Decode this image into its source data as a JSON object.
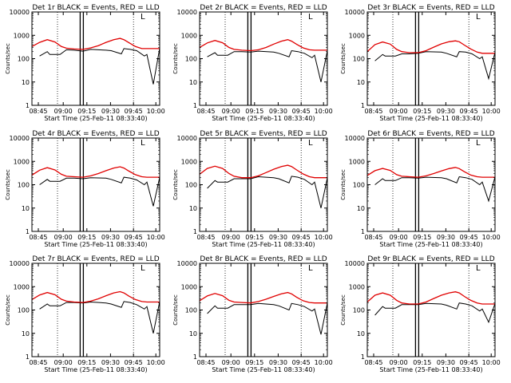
{
  "chart_data": [
    {
      "type": "line",
      "title": "Det 1r BLACK = Events, RED = LLD",
      "xlabel": "Start Time (25-Feb-11 08:33:40)",
      "ylabel": "Counts/sec",
      "yscale": "log",
      "ylim": [
        1,
        10000
      ],
      "x_ticks": [
        "08:45",
        "09:00",
        "09:15",
        "09:30",
        "09:45",
        "10:00"
      ],
      "y_ticks": [
        "1",
        "10",
        "100",
        "1000",
        "10000"
      ],
      "corner_mark": "L",
      "series": [
        {
          "name": "BLACK = Events",
          "color": "#000000",
          "x": [
            6,
            12,
            14,
            22,
            27,
            33,
            40,
            46,
            58,
            62,
            70,
            72,
            77,
            82,
            88,
            90,
            95,
            100
          ],
          "y": [
            130,
            200,
            150,
            150,
            240,
            230,
            210,
            250,
            230,
            220,
            160,
            270,
            250,
            220,
            130,
            150,
            8,
            280
          ]
        },
        {
          "name": "RED = LLD",
          "color": "#e00000",
          "x": [
            0,
            6,
            12,
            18,
            23,
            27,
            33,
            40,
            46,
            52,
            58,
            64,
            69,
            72,
            76,
            81,
            86,
            90,
            94,
            100
          ],
          "y": [
            330,
            500,
            650,
            520,
            330,
            280,
            260,
            250,
            290,
            360,
            500,
            650,
            740,
            650,
            480,
            330,
            270,
            270,
            270,
            270
          ]
        }
      ]
    },
    {
      "type": "line",
      "title": "Det 2r BLACK = Events, RED = LLD",
      "xlabel": "Start Time (25-Feb-11 08:33:40)",
      "ylabel": "Counts/sec",
      "yscale": "log",
      "ylim": [
        1,
        10000
      ],
      "x_ticks": [
        "08:45",
        "09:00",
        "09:15",
        "09:30",
        "09:45",
        "10:00"
      ],
      "y_ticks": [
        "1",
        "10",
        "100",
        "1000",
        "10000"
      ],
      "corner_mark": "L",
      "series": [
        {
          "name": "BLACK = Events",
          "color": "#000000",
          "x": [
            6,
            12,
            14,
            22,
            27,
            33,
            40,
            46,
            58,
            62,
            70,
            72,
            77,
            82,
            88,
            90,
            95,
            100
          ],
          "y": [
            120,
            180,
            140,
            140,
            200,
            200,
            190,
            210,
            190,
            170,
            120,
            220,
            200,
            170,
            110,
            140,
            10,
            220
          ]
        },
        {
          "name": "RED = LLD",
          "color": "#e00000",
          "x": [
            0,
            6,
            12,
            18,
            23,
            27,
            33,
            40,
            46,
            52,
            58,
            64,
            69,
            72,
            76,
            81,
            86,
            90,
            94,
            100
          ],
          "y": [
            300,
            470,
            600,
            480,
            300,
            250,
            230,
            220,
            240,
            300,
            420,
            560,
            650,
            560,
            410,
            290,
            240,
            230,
            230,
            230
          ]
        }
      ]
    },
    {
      "type": "line",
      "title": "Det 3r BLACK = Events, RED = LLD",
      "xlabel": "Start Time (25-Feb-11 08:33:40)",
      "ylabel": "Counts/sec",
      "yscale": "log",
      "ylim": [
        1,
        10000
      ],
      "x_ticks": [
        "08:45",
        "09:00",
        "09:15",
        "09:30",
        "09:45",
        "10:00"
      ],
      "y_ticks": [
        "1",
        "10",
        "100",
        "1000",
        "10000"
      ],
      "corner_mark": "L",
      "series": [
        {
          "name": "BLACK = Events",
          "color": "#000000",
          "x": [
            6,
            12,
            14,
            22,
            27,
            33,
            40,
            46,
            58,
            62,
            70,
            72,
            77,
            82,
            88,
            90,
            95,
            100
          ],
          "y": [
            80,
            150,
            130,
            130,
            160,
            160,
            170,
            200,
            190,
            170,
            120,
            200,
            190,
            160,
            100,
            120,
            14,
            190
          ]
        },
        {
          "name": "RED = LLD",
          "color": "#e00000",
          "x": [
            0,
            6,
            12,
            18,
            23,
            27,
            33,
            40,
            46,
            52,
            58,
            64,
            69,
            72,
            76,
            81,
            86,
            90,
            94,
            100
          ],
          "y": [
            200,
            400,
            520,
            420,
            250,
            200,
            180,
            180,
            220,
            310,
            430,
            530,
            580,
            530,
            380,
            260,
            190,
            170,
            170,
            170
          ]
        }
      ]
    },
    {
      "type": "line",
      "title": "Det 4r BLACK = Events, RED = LLD",
      "xlabel": "Start Time (25-Feb-11 08:33:40)",
      "ylabel": "Counts/sec",
      "yscale": "log",
      "ylim": [
        1,
        10000
      ],
      "x_ticks": [
        "08:45",
        "09:00",
        "09:15",
        "09:30",
        "09:45",
        "10:00"
      ],
      "y_ticks": [
        "1",
        "10",
        "100",
        "1000",
        "10000"
      ],
      "corner_mark": "L",
      "series": [
        {
          "name": "BLACK = Events",
          "color": "#000000",
          "x": [
            6,
            12,
            14,
            22,
            27,
            33,
            40,
            46,
            58,
            62,
            70,
            72,
            77,
            82,
            88,
            90,
            95,
            100
          ],
          "y": [
            100,
            170,
            140,
            140,
            190,
            190,
            180,
            200,
            190,
            170,
            120,
            210,
            190,
            160,
            100,
            130,
            12,
            210
          ]
        },
        {
          "name": "RED = LLD",
          "color": "#e00000",
          "x": [
            0,
            6,
            12,
            18,
            23,
            27,
            33,
            40,
            46,
            52,
            58,
            64,
            69,
            72,
            76,
            81,
            86,
            90,
            94,
            100
          ],
          "y": [
            260,
            420,
            540,
            430,
            280,
            230,
            220,
            210,
            240,
            300,
            400,
            520,
            590,
            520,
            380,
            270,
            220,
            210,
            210,
            210
          ]
        }
      ]
    },
    {
      "type": "line",
      "title": "Det 5r BLACK = Events, RED = LLD",
      "xlabel": "Start Time (25-Feb-11 08:33:40)",
      "ylabel": "Counts/sec",
      "yscale": "log",
      "ylim": [
        1,
        10000
      ],
      "x_ticks": [
        "08:45",
        "09:00",
        "09:15",
        "09:30",
        "09:45",
        "10:00"
      ],
      "y_ticks": [
        "1",
        "10",
        "100",
        "1000",
        "10000"
      ],
      "corner_mark": "L",
      "series": [
        {
          "name": "BLACK = Events",
          "color": "#000000",
          "x": [
            6,
            12,
            14,
            22,
            27,
            33,
            40,
            46,
            58,
            62,
            70,
            72,
            77,
            82,
            88,
            90,
            95,
            100
          ],
          "y": [
            70,
            150,
            130,
            130,
            180,
            180,
            180,
            220,
            200,
            180,
            120,
            230,
            210,
            170,
            100,
            130,
            10,
            200
          ]
        },
        {
          "name": "RED = LLD",
          "color": "#e00000",
          "x": [
            0,
            6,
            12,
            18,
            23,
            27,
            33,
            40,
            46,
            52,
            58,
            64,
            69,
            72,
            76,
            81,
            86,
            90,
            94,
            100
          ],
          "y": [
            280,
            500,
            620,
            500,
            300,
            230,
            200,
            200,
            240,
            330,
            460,
            600,
            680,
            600,
            430,
            290,
            220,
            200,
            200,
            200
          ]
        }
      ]
    },
    {
      "type": "line",
      "title": "Det 6r BLACK = Events, RED = LLD",
      "xlabel": "Start Time (25-Feb-11 08:33:40)",
      "ylabel": "Counts/sec",
      "yscale": "log",
      "ylim": [
        1,
        10000
      ],
      "x_ticks": [
        "08:45",
        "09:00",
        "09:15",
        "09:30",
        "09:45",
        "10:00"
      ],
      "y_ticks": [
        "1",
        "10",
        "100",
        "1000",
        "10000"
      ],
      "corner_mark": "L",
      "series": [
        {
          "name": "BLACK = Events",
          "color": "#000000",
          "x": [
            6,
            12,
            14,
            22,
            27,
            33,
            40,
            46,
            58,
            62,
            70,
            72,
            77,
            82,
            88,
            90,
            95,
            100
          ],
          "y": [
            100,
            180,
            150,
            150,
            200,
            200,
            190,
            210,
            200,
            180,
            120,
            220,
            200,
            170,
            100,
            130,
            20,
            220
          ]
        },
        {
          "name": "RED = LLD",
          "color": "#e00000",
          "x": [
            0,
            6,
            12,
            18,
            23,
            27,
            33,
            40,
            46,
            52,
            58,
            64,
            69,
            72,
            76,
            81,
            86,
            90,
            94,
            100
          ],
          "y": [
            250,
            400,
            500,
            410,
            270,
            230,
            220,
            210,
            240,
            300,
            390,
            490,
            550,
            490,
            360,
            260,
            220,
            210,
            210,
            210
          ]
        }
      ]
    },
    {
      "type": "line",
      "title": "Det 7r BLACK = Events, RED = LLD",
      "xlabel": "Start Time (25-Feb-11 08:33:40)",
      "ylabel": "Counts/sec",
      "yscale": "log",
      "ylim": [
        1,
        10000
      ],
      "x_ticks": [
        "08:45",
        "09:00",
        "09:15",
        "09:30",
        "09:45",
        "10:00"
      ],
      "y_ticks": [
        "1",
        "10",
        "100",
        "1000",
        "10000"
      ],
      "corner_mark": "L",
      "series": [
        {
          "name": "BLACK = Events",
          "color": "#000000",
          "x": [
            6,
            12,
            14,
            22,
            27,
            33,
            40,
            46,
            58,
            62,
            70,
            72,
            77,
            82,
            88,
            90,
            95,
            100
          ],
          "y": [
            110,
            180,
            150,
            150,
            210,
            210,
            200,
            220,
            200,
            180,
            130,
            230,
            210,
            170,
            110,
            140,
            10,
            230
          ]
        },
        {
          "name": "RED = LLD",
          "color": "#e00000",
          "x": [
            0,
            6,
            12,
            18,
            23,
            27,
            33,
            40,
            46,
            52,
            58,
            64,
            69,
            72,
            76,
            81,
            86,
            90,
            94,
            100
          ],
          "y": [
            280,
            440,
            560,
            450,
            290,
            240,
            220,
            210,
            240,
            300,
            410,
            540,
            610,
            540,
            390,
            280,
            230,
            220,
            220,
            220
          ]
        }
      ]
    },
    {
      "type": "line",
      "title": "Det 8r BLACK = Events, RED = LLD",
      "xlabel": "Start Time (25-Feb-11 08:33:40)",
      "ylabel": "Counts/sec",
      "yscale": "log",
      "ylim": [
        1,
        10000
      ],
      "x_ticks": [
        "08:45",
        "09:00",
        "09:15",
        "09:30",
        "09:45",
        "10:00"
      ],
      "y_ticks": [
        "1",
        "10",
        "100",
        "1000",
        "10000"
      ],
      "corner_mark": "L",
      "series": [
        {
          "name": "BLACK = Events",
          "color": "#000000",
          "x": [
            6,
            12,
            14,
            22,
            27,
            33,
            40,
            46,
            58,
            62,
            70,
            72,
            77,
            82,
            88,
            90,
            95,
            100
          ],
          "y": [
            70,
            150,
            120,
            120,
            170,
            170,
            170,
            190,
            170,
            150,
            100,
            190,
            170,
            140,
            90,
            110,
            9,
            200
          ]
        },
        {
          "name": "RED = LLD",
          "color": "#e00000",
          "x": [
            0,
            6,
            12,
            18,
            23,
            27,
            33,
            40,
            46,
            52,
            58,
            64,
            69,
            72,
            76,
            81,
            86,
            90,
            94,
            100
          ],
          "y": [
            250,
            400,
            510,
            410,
            260,
            220,
            210,
            200,
            230,
            290,
            380,
            490,
            560,
            490,
            350,
            250,
            210,
            200,
            200,
            200
          ]
        }
      ]
    },
    {
      "type": "line",
      "title": "Det 9r BLACK = Events, RED = LLD",
      "xlabel": "Start Time (25-Feb-11 08:33:40)",
      "ylabel": "Counts/sec",
      "yscale": "log",
      "ylim": [
        1,
        10000
      ],
      "x_ticks": [
        "08:45",
        "09:00",
        "09:15",
        "09:30",
        "09:45",
        "10:00"
      ],
      "y_ticks": [
        "1",
        "10",
        "100",
        "1000",
        "10000"
      ],
      "corner_mark": "L",
      "series": [
        {
          "name": "BLACK = Events",
          "color": "#000000",
          "x": [
            6,
            12,
            14,
            22,
            27,
            33,
            40,
            46,
            58,
            62,
            70,
            72,
            77,
            82,
            88,
            90,
            95,
            100
          ],
          "y": [
            60,
            140,
            120,
            120,
            170,
            170,
            170,
            190,
            180,
            160,
            110,
            200,
            180,
            150,
            90,
            110,
            30,
            190
          ]
        },
        {
          "name": "RED = LLD",
          "color": "#e00000",
          "x": [
            0,
            6,
            12,
            18,
            23,
            27,
            33,
            40,
            46,
            52,
            58,
            64,
            69,
            72,
            76,
            81,
            86,
            90,
            94,
            100
          ],
          "y": [
            220,
            430,
            540,
            430,
            260,
            200,
            180,
            180,
            220,
            310,
            430,
            540,
            600,
            540,
            380,
            260,
            200,
            180,
            180,
            180
          ]
        }
      ]
    }
  ]
}
